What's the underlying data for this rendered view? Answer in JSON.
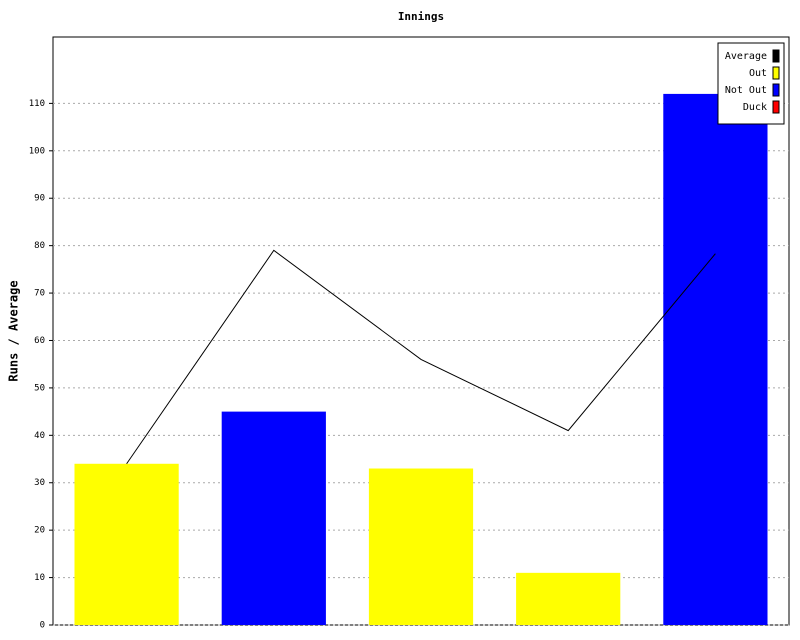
{
  "chart_data": {
    "type": "bar",
    "title": "Innings",
    "y_label": "Runs / Average",
    "categories": [
      null,
      null,
      null,
      null,
      null
    ],
    "series": [
      {
        "name": "Average",
        "type": "line",
        "color": "#000000",
        "values": [
          34,
          79,
          56,
          41,
          78.3
        ]
      },
      {
        "name": "Out",
        "type": "bar",
        "color": "#ffff00",
        "values": [
          34,
          null,
          33,
          11,
          null
        ]
      },
      {
        "name": "Not Out",
        "type": "bar",
        "color": "#0000ff",
        "values": [
          null,
          45,
          null,
          null,
          112
        ]
      },
      {
        "name": "Duck",
        "type": "bar",
        "color": "#ff0000",
        "values": [
          null,
          null,
          null,
          null,
          null
        ]
      }
    ],
    "ylim": [
      0,
      124
    ],
    "yticks": [
      0,
      10,
      20,
      30,
      40,
      50,
      60,
      70,
      80,
      90,
      100,
      110
    ],
    "grid": true,
    "legend": "top-right"
  }
}
